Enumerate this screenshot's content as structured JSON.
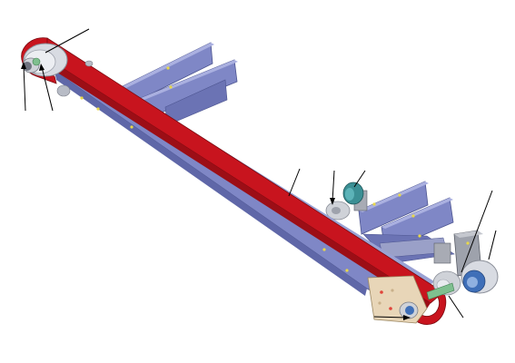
{
  "figure": {
    "kind": "unlabeled conveyor belt assembly drawing",
    "background_color": "#ffffff",
    "colors": {
      "frame": "#7f87c6",
      "frame_dark": "#5f67a8",
      "frame_light": "#aab0e0",
      "belt": "#c8141e",
      "belt_dark": "#7a0a10",
      "pulley_metal": "#cfd2d8",
      "pulley_dark": "#8a8e98",
      "shaft_green": "#7fbf8f",
      "bearing_blue": "#3f6fb8",
      "teal_part": "#3b8f94",
      "end_plate": "#e8d6b8",
      "fastener": "#e8d84a",
      "leader_line": "#000000"
    },
    "leader_line_count": 10,
    "text_labels": []
  }
}
